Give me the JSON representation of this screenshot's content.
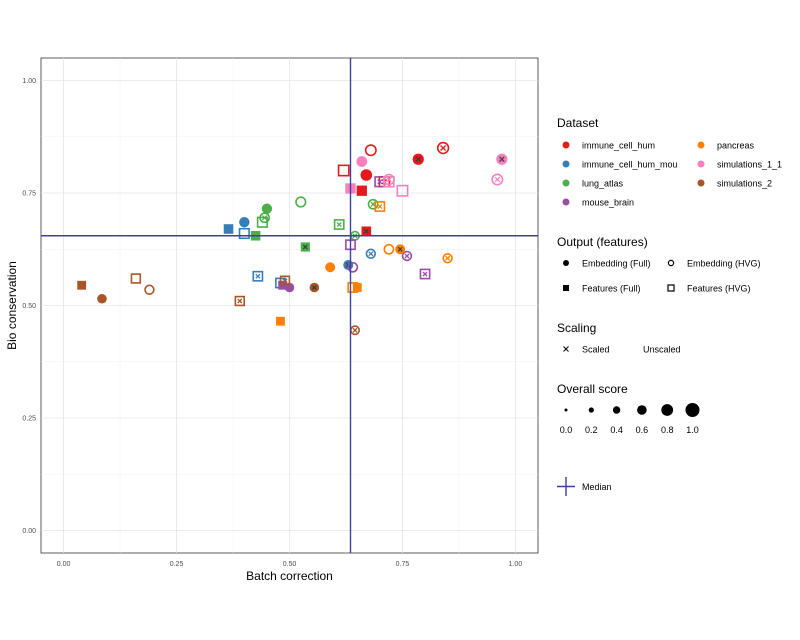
{
  "chart_data": {
    "type": "scatter",
    "title": "",
    "xlabel": "Batch correction",
    "ylabel": "Bio conservation",
    "xlim": [
      -0.05,
      1.05
    ],
    "ylim": [
      -0.05,
      1.05
    ],
    "x_ticks": [
      "0.00",
      "0.25",
      "0.50",
      "0.75",
      "1.00"
    ],
    "y_ticks": [
      "0.00",
      "0.25",
      "0.50",
      "0.75",
      "1.00"
    ],
    "grid": true,
    "median": {
      "x": 0.635,
      "y": 0.655,
      "color": "#3f3fa0"
    },
    "datasets": [
      {
        "name": "immune_cell_hum",
        "color": "#e41a1c"
      },
      {
        "name": "immune_cell_hum_mou",
        "color": "#377eb8"
      },
      {
        "name": "lung_atlas",
        "color": "#4daf4a"
      },
      {
        "name": "mouse_brain",
        "color": "#984ea3"
      },
      {
        "name": "pancreas",
        "color": "#ff7f00"
      },
      {
        "name": "simulations_1_1",
        "color": "#f781bf"
      },
      {
        "name": "simulations_2",
        "color": "#a65628"
      }
    ],
    "points": [
      {
        "dataset": "immune_cell_hum",
        "output": "Embedding (HVG)",
        "scaled": true,
        "x": 0.84,
        "y": 0.85,
        "score": 0.75
      },
      {
        "dataset": "immune_cell_hum",
        "output": "Embedding (Full)",
        "scaled": true,
        "x": 0.785,
        "y": 0.825,
        "score": 0.65
      },
      {
        "dataset": "immune_cell_hum",
        "output": "Embedding (HVG)",
        "scaled": false,
        "x": 0.68,
        "y": 0.845,
        "score": 0.7
      },
      {
        "dataset": "immune_cell_hum",
        "output": "Embedding (Full)",
        "scaled": false,
        "x": 0.67,
        "y": 0.79,
        "score": 0.7
      },
      {
        "dataset": "immune_cell_hum",
        "output": "Features (Full)",
        "scaled": false,
        "x": 0.66,
        "y": 0.755,
        "score": 0.65
      },
      {
        "dataset": "immune_cell_hum",
        "output": "Features (HVG)",
        "scaled": false,
        "x": 0.62,
        "y": 0.8,
        "score": 0.65
      },
      {
        "dataset": "immune_cell_hum",
        "output": "Features (HVG)",
        "scaled": true,
        "x": 0.71,
        "y": 0.775,
        "score": 0.6
      },
      {
        "dataset": "immune_cell_hum",
        "output": "Features (Full)",
        "scaled": true,
        "x": 0.67,
        "y": 0.665,
        "score": 0.55
      },
      {
        "dataset": "immune_cell_hum_mou",
        "output": "Features (Full)",
        "scaled": false,
        "x": 0.365,
        "y": 0.67,
        "score": 0.55
      },
      {
        "dataset": "immune_cell_hum_mou",
        "output": "Embedding (Full)",
        "scaled": false,
        "x": 0.4,
        "y": 0.685,
        "score": 0.55
      },
      {
        "dataset": "immune_cell_hum_mou",
        "output": "Features (HVG)",
        "scaled": false,
        "x": 0.4,
        "y": 0.66,
        "score": 0.55
      },
      {
        "dataset": "immune_cell_hum_mou",
        "output": "Features (HVG)",
        "scaled": true,
        "x": 0.43,
        "y": 0.565,
        "score": 0.5
      },
      {
        "dataset": "immune_cell_hum_mou",
        "output": "Features (HVG)",
        "scaled": true,
        "x": 0.48,
        "y": 0.55,
        "score": 0.5
      },
      {
        "dataset": "immune_cell_hum_mou",
        "output": "Embedding (Full)",
        "scaled": true,
        "x": 0.63,
        "y": 0.59,
        "score": 0.5
      },
      {
        "dataset": "immune_cell_hum_mou",
        "output": "Embedding (HVG)",
        "scaled": true,
        "x": 0.68,
        "y": 0.615,
        "score": 0.5
      },
      {
        "dataset": "lung_atlas",
        "output": "Embedding (Full)",
        "scaled": false,
        "x": 0.45,
        "y": 0.715,
        "score": 0.55
      },
      {
        "dataset": "lung_atlas",
        "output": "Embedding (HVG)",
        "scaled": true,
        "x": 0.445,
        "y": 0.695,
        "score": 0.55
      },
      {
        "dataset": "lung_atlas",
        "output": "Features (HVG)",
        "scaled": false,
        "x": 0.44,
        "y": 0.685,
        "score": 0.55
      },
      {
        "dataset": "lung_atlas",
        "output": "Features (Full)",
        "scaled": false,
        "x": 0.425,
        "y": 0.655,
        "score": 0.55
      },
      {
        "dataset": "lung_atlas",
        "output": "Embedding (HVG)",
        "scaled": false,
        "x": 0.525,
        "y": 0.73,
        "score": 0.6
      },
      {
        "dataset": "lung_atlas",
        "output": "Features (Full)",
        "scaled": true,
        "x": 0.535,
        "y": 0.63,
        "score": 0.5
      },
      {
        "dataset": "lung_atlas",
        "output": "Features (HVG)",
        "scaled": true,
        "x": 0.61,
        "y": 0.68,
        "score": 0.5
      },
      {
        "dataset": "lung_atlas",
        "output": "Embedding (HVG)",
        "scaled": true,
        "x": 0.685,
        "y": 0.725,
        "score": 0.55
      },
      {
        "dataset": "lung_atlas",
        "output": "Embedding (HVG)",
        "scaled": true,
        "x": 0.645,
        "y": 0.655,
        "score": 0.45
      },
      {
        "dataset": "mouse_brain",
        "output": "Features (HVG)",
        "scaled": false,
        "x": 0.635,
        "y": 0.635,
        "score": 0.5
      },
      {
        "dataset": "mouse_brain",
        "output": "Embedding (HVG)",
        "scaled": false,
        "x": 0.64,
        "y": 0.585,
        "score": 0.55
      },
      {
        "dataset": "mouse_brain",
        "output": "Embedding (HVG)",
        "scaled": true,
        "x": 0.76,
        "y": 0.61,
        "score": 0.5
      },
      {
        "dataset": "mouse_brain",
        "output": "Features (HVG)",
        "scaled": true,
        "x": 0.8,
        "y": 0.57,
        "score": 0.5
      },
      {
        "dataset": "mouse_brain",
        "output": "Features (Full)",
        "scaled": false,
        "x": 0.485,
        "y": 0.545,
        "score": 0.45
      },
      {
        "dataset": "mouse_brain",
        "output": "Embedding (Full)",
        "scaled": false,
        "x": 0.5,
        "y": 0.54,
        "score": 0.45
      },
      {
        "dataset": "mouse_brain",
        "output": "Features (HVG)",
        "scaled": true,
        "x": 0.7,
        "y": 0.775,
        "score": 0.55
      },
      {
        "dataset": "pancreas",
        "output": "Embedding (Full)",
        "scaled": false,
        "x": 0.59,
        "y": 0.585,
        "score": 0.5
      },
      {
        "dataset": "pancreas",
        "output": "Features (HVG)",
        "scaled": false,
        "x": 0.64,
        "y": 0.54,
        "score": 0.5
      },
      {
        "dataset": "pancreas",
        "output": "Features (Full)",
        "scaled": false,
        "x": 0.65,
        "y": 0.54,
        "score": 0.45
      },
      {
        "dataset": "pancreas",
        "output": "Features (Full)",
        "scaled": false,
        "x": 0.48,
        "y": 0.465,
        "score": 0.45
      },
      {
        "dataset": "pancreas",
        "output": "Embedding (HVG)",
        "scaled": false,
        "x": 0.72,
        "y": 0.625,
        "score": 0.55
      },
      {
        "dataset": "pancreas",
        "output": "Embedding (Full)",
        "scaled": true,
        "x": 0.745,
        "y": 0.625,
        "score": 0.5
      },
      {
        "dataset": "pancreas",
        "output": "Embedding (HVG)",
        "scaled": true,
        "x": 0.85,
        "y": 0.605,
        "score": 0.5
      },
      {
        "dataset": "pancreas",
        "output": "Features (HVG)",
        "scaled": true,
        "x": 0.7,
        "y": 0.72,
        "score": 0.5
      },
      {
        "dataset": "simulations_1_1",
        "output": "Embedding (Full)",
        "scaled": true,
        "x": 0.97,
        "y": 0.825,
        "score": 0.65
      },
      {
        "dataset": "simulations_1_1",
        "output": "Embedding (HVG)",
        "scaled": true,
        "x": 0.96,
        "y": 0.78,
        "score": 0.7
      },
      {
        "dataset": "simulations_1_1",
        "output": "Embedding (HVG)",
        "scaled": true,
        "x": 0.72,
        "y": 0.78,
        "score": 0.65
      },
      {
        "dataset": "simulations_1_1",
        "output": "Features (HVG)",
        "scaled": false,
        "x": 0.75,
        "y": 0.755,
        "score": 0.65
      },
      {
        "dataset": "simulations_1_1",
        "output": "Features (Full)",
        "scaled": false,
        "x": 0.635,
        "y": 0.76,
        "score": 0.65
      },
      {
        "dataset": "simulations_1_1",
        "output": "Embedding (Full)",
        "scaled": false,
        "x": 0.66,
        "y": 0.82,
        "score": 0.6
      },
      {
        "dataset": "simulations_1_1",
        "output": "Features (HVG)",
        "scaled": false,
        "x": 0.72,
        "y": 0.775,
        "score": 0.6
      },
      {
        "dataset": "simulations_2",
        "output": "Features (Full)",
        "scaled": false,
        "x": 0.04,
        "y": 0.545,
        "score": 0.45
      },
      {
        "dataset": "simulations_2",
        "output": "Embedding (Full)",
        "scaled": false,
        "x": 0.085,
        "y": 0.515,
        "score": 0.45
      },
      {
        "dataset": "simulations_2",
        "output": "Features (HVG)",
        "scaled": false,
        "x": 0.16,
        "y": 0.56,
        "score": 0.45
      },
      {
        "dataset": "simulations_2",
        "output": "Embedding (HVG)",
        "scaled": false,
        "x": 0.19,
        "y": 0.535,
        "score": 0.5
      },
      {
        "dataset": "simulations_2",
        "output": "Features (HVG)",
        "scaled": true,
        "x": 0.39,
        "y": 0.51,
        "score": 0.45
      },
      {
        "dataset": "simulations_2",
        "output": "Features (HVG)",
        "scaled": true,
        "x": 0.49,
        "y": 0.555,
        "score": 0.45
      },
      {
        "dataset": "simulations_2",
        "output": "Embedding (Full)",
        "scaled": true,
        "x": 0.555,
        "y": 0.54,
        "score": 0.45
      },
      {
        "dataset": "simulations_2",
        "output": "Embedding (HVG)",
        "scaled": true,
        "x": 0.645,
        "y": 0.445,
        "score": 0.45
      }
    ]
  },
  "legend": {
    "dataset_title": "Dataset",
    "output_title": "Output (features)",
    "output_items": [
      "Embedding (Full)",
      "Embedding (HVG)",
      "Features (Full)",
      "Features (HVG)"
    ],
    "scaling_title": "Scaling",
    "scaling_items": [
      "Scaled",
      "Unscaled"
    ],
    "score_title": "Overall score",
    "score_items": [
      "0.0",
      "0.2",
      "0.4",
      "0.6",
      "0.8",
      "1.0"
    ],
    "median_label": "Median"
  }
}
